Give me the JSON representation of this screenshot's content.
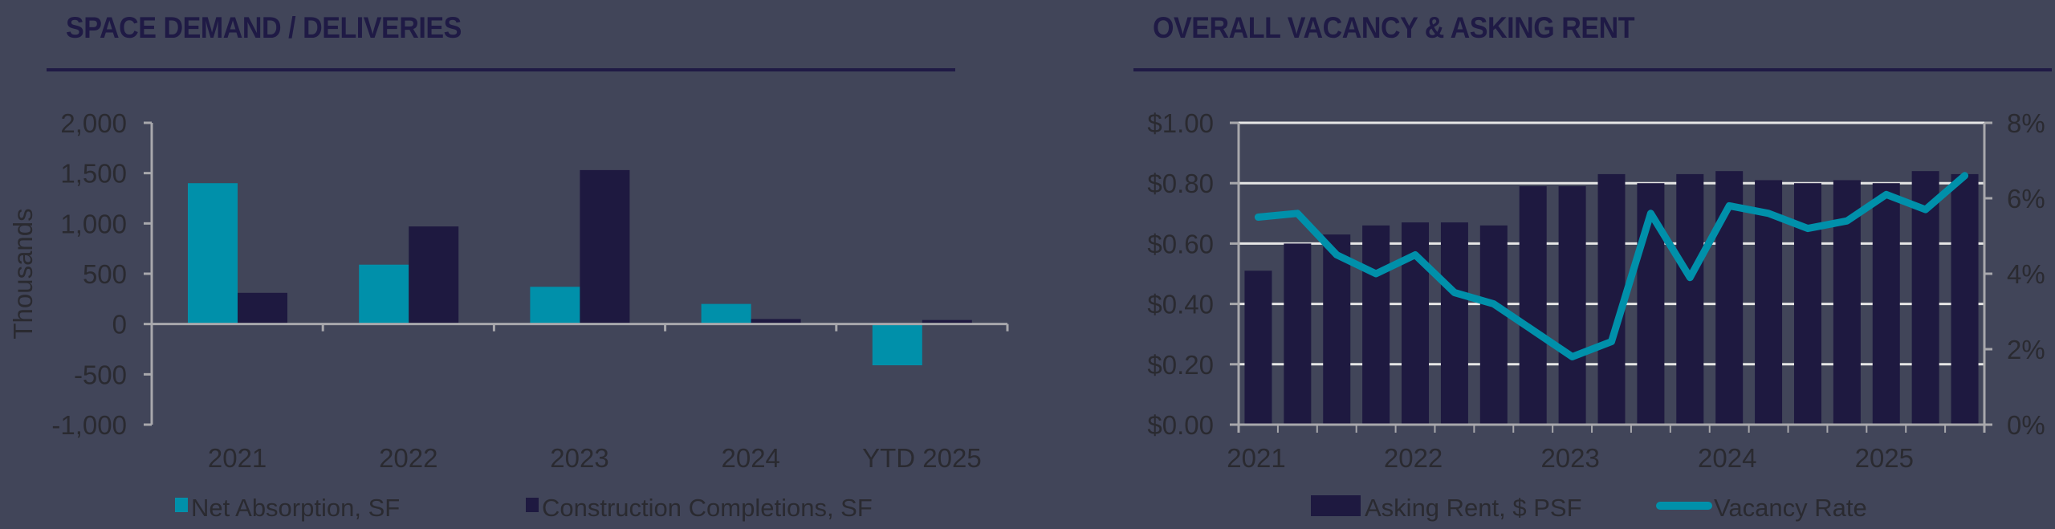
{
  "left_panel": {
    "title": "SPACE DEMAND / DELIVERIES",
    "y_axis_label": "Thousands"
  },
  "right_panel": {
    "title": "OVERALL VACANCY & ASKING RENT"
  },
  "colors": {
    "background": "#414559",
    "teal": "#0090aa",
    "navy": "#1e1940",
    "text": "#2a2a30",
    "axis": "#a8a8ac",
    "grid": "#e6e6e6"
  },
  "chart_data": [
    {
      "type": "bar",
      "title": "SPACE DEMAND / DELIVERIES",
      "xlabel": "",
      "ylabel": "Thousands",
      "ylim": [
        -1000,
        2000
      ],
      "yticks": [
        2000,
        1500,
        1000,
        500,
        0,
        -500,
        -1000
      ],
      "ytick_labels": [
        "2,000",
        "1,500",
        "1,000",
        "500",
        "0",
        "-500",
        "-1,000"
      ],
      "categories": [
        "2021",
        "2022",
        "2023",
        "2024",
        "YTD 2025"
      ],
      "series": [
        {
          "name": "Net Absorption, SF",
          "color": "#0090aa",
          "values": [
            1400,
            590,
            370,
            200,
            -410
          ]
        },
        {
          "name": "Construction Completions, SF",
          "color": "#1e1940",
          "values": [
            310,
            970,
            1530,
            50,
            40
          ]
        }
      ],
      "grid": false,
      "legend_position": "bottom"
    },
    {
      "type": "bar+line",
      "title": "OVERALL VACANCY & ASKING RENT",
      "x": [
        "2021 Q1",
        "2021 Q2",
        "2021 Q3",
        "2021 Q4",
        "2022 Q1",
        "2022 Q2",
        "2022 Q3",
        "2022 Q4",
        "2023 Q1",
        "2023 Q2",
        "2023 Q3",
        "2023 Q4",
        "2024 Q1",
        "2024 Q2",
        "2024 Q3",
        "2024 Q4",
        "2025 Q1",
        "2025 Q2",
        "2025 Q3"
      ],
      "x_tick_labels": [
        "2021",
        "2022",
        "2023",
        "2024",
        "2025"
      ],
      "series": [
        {
          "name": "Asking Rent, $ PSF",
          "type": "bar",
          "axis": "left",
          "color": "#1e1940",
          "values": [
            0.51,
            0.6,
            0.63,
            0.66,
            0.67,
            0.67,
            0.66,
            0.79,
            0.79,
            0.83,
            0.8,
            0.83,
            0.84,
            0.81,
            0.8,
            0.81,
            0.8,
            0.84,
            0.83
          ]
        },
        {
          "name": "Vacancy Rate",
          "type": "line",
          "axis": "right",
          "color": "#0090aa",
          "values": [
            5.5,
            5.6,
            4.5,
            4.0,
            4.5,
            3.5,
            3.2,
            2.5,
            1.8,
            2.2,
            5.6,
            3.9,
            5.8,
            5.6,
            5.2,
            5.4,
            6.1,
            5.7,
            6.6
          ]
        }
      ],
      "ylim_left": [
        0,
        1.0
      ],
      "yticks_left": [
        "$1.00",
        "$0.80",
        "$0.60",
        "$0.40",
        "$0.20",
        "$0.00"
      ],
      "ylim_right": [
        0,
        8
      ],
      "yticks_right": [
        "8%",
        "6%",
        "4%",
        "2%",
        "0%"
      ],
      "grid": true,
      "legend_position": "bottom"
    }
  ]
}
